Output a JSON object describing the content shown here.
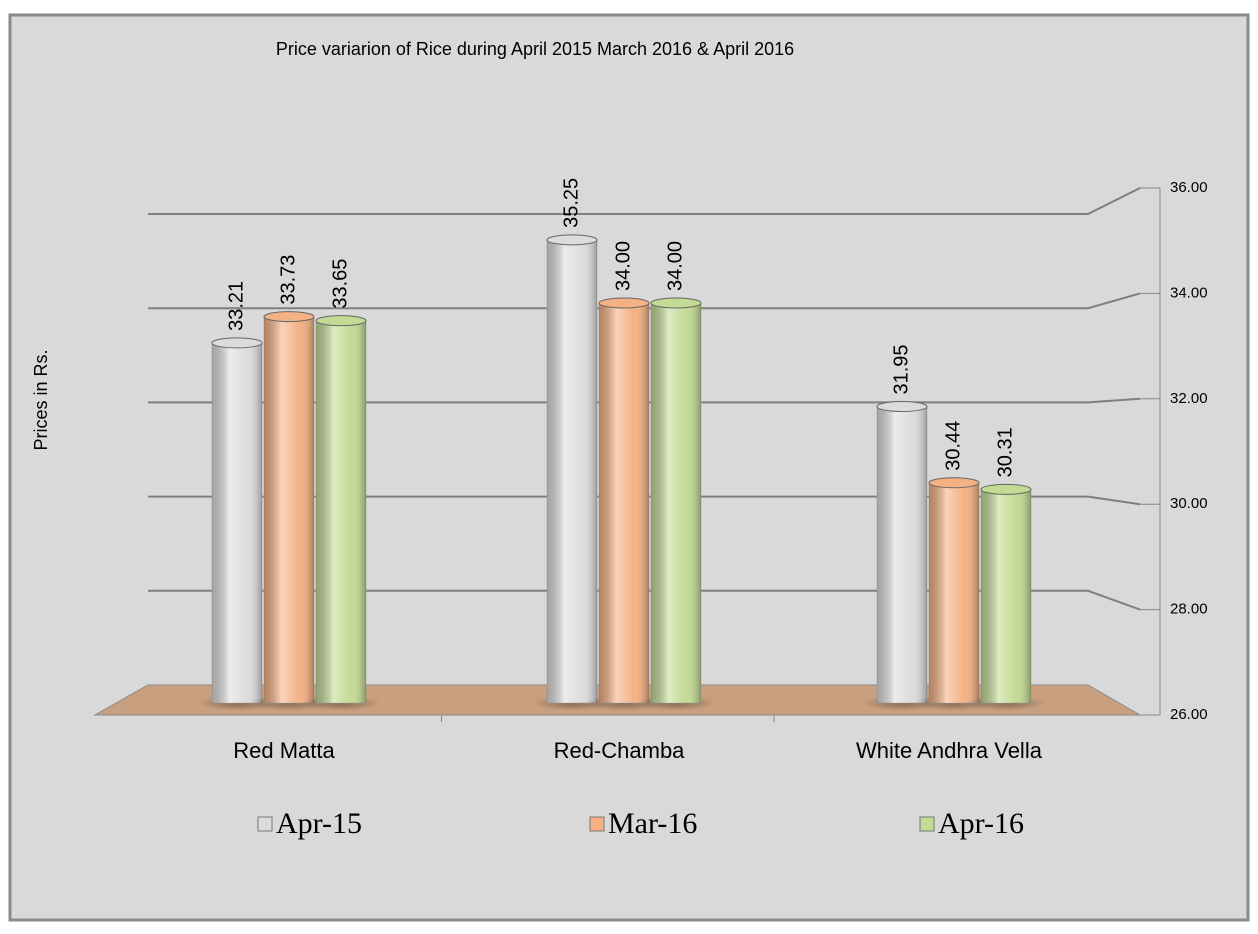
{
  "chart_data": {
    "type": "bar",
    "title": "Price variarion  of Rice during April 2015 March 2016 & April 2016",
    "y_label": "Prices in Rs.",
    "categories": [
      "Red Matta",
      "Red-Chamba",
      "White Andhra Vella"
    ],
    "series": [
      {
        "name": "Apr-15",
        "color": "#dcdcdc",
        "values": [
          33.21,
          35.25,
          31.95
        ],
        "value_labels": [
          "33.21",
          "35.25",
          "31.95"
        ]
      },
      {
        "name": "Mar-16",
        "color": "#f4b183",
        "values": [
          33.73,
          34.0,
          30.44
        ],
        "value_labels": [
          "33.73",
          "34.00",
          "30.44"
        ]
      },
      {
        "name": "Apr-16",
        "color": "#c3da94",
        "values": [
          33.65,
          34.0,
          30.31
        ],
        "value_labels": [
          "33.65",
          "34.00",
          "30.31"
        ]
      }
    ],
    "ylim": [
      26,
      36
    ],
    "yticks": [
      {
        "value": 26,
        "label": "26.00"
      },
      {
        "value": 28,
        "label": "28.00"
      },
      {
        "value": 30,
        "label": "30.00"
      },
      {
        "value": 32,
        "label": "32.00"
      },
      {
        "value": 34,
        "label": "34.00"
      },
      {
        "value": 36,
        "label": "36.00"
      }
    ],
    "grid": true,
    "legend": "bottom"
  }
}
